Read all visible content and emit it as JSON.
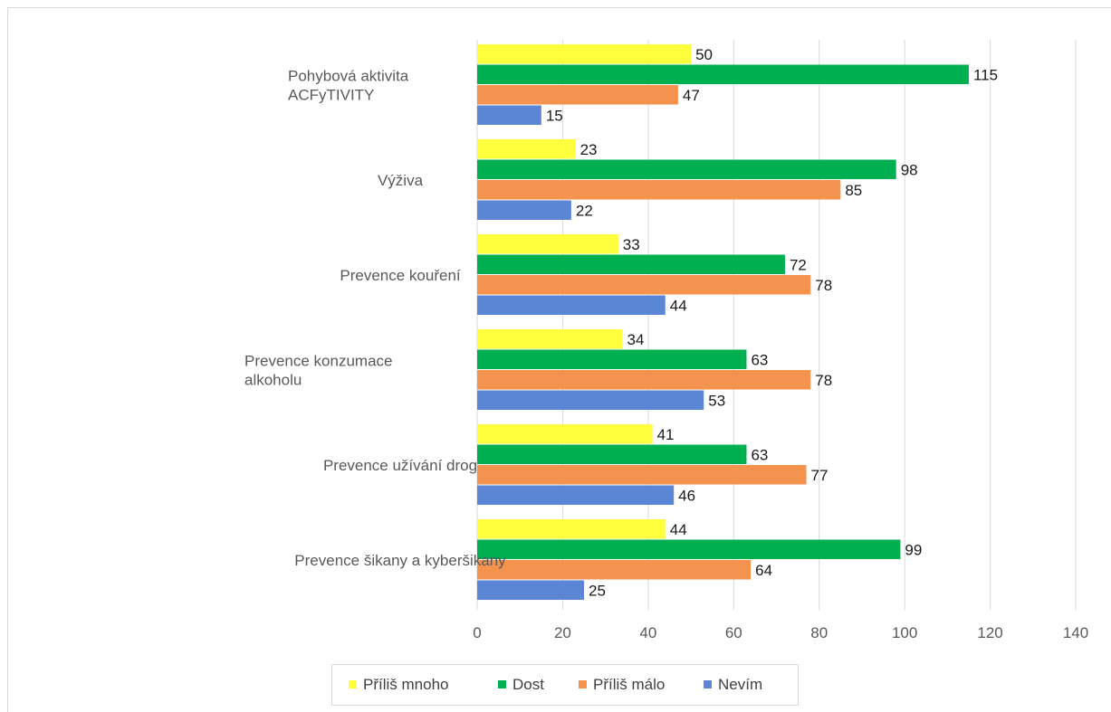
{
  "chart_data": {
    "type": "bar",
    "orientation": "horizontal",
    "categories": [
      [
        "Pohybová aktivita",
        "ACFyTIVITY"
      ],
      [
        "Výživa"
      ],
      [
        "Prevence kouření"
      ],
      [
        "Prevence konzumace",
        "alkoholu"
      ],
      [
        "Prevence užívání drog"
      ],
      [
        "Prevence šikany a kyberšikany"
      ]
    ],
    "series": [
      {
        "name": "Příliš mnoho",
        "color": "#ffff3b",
        "values": [
          50,
          23,
          33,
          34,
          41,
          44
        ]
      },
      {
        "name": "Dost",
        "color": "#00b050",
        "values": [
          115,
          98,
          72,
          63,
          63,
          99
        ]
      },
      {
        "name": "Příliš málo",
        "color": "#f4934d",
        "values": [
          47,
          85,
          78,
          78,
          77,
          64
        ]
      },
      {
        "name": "Nevím",
        "color": "#5b86d6",
        "values": [
          15,
          22,
          44,
          53,
          46,
          25
        ]
      }
    ],
    "xlim": [
      0,
      140
    ],
    "xticks": [
      "0",
      "20",
      "40",
      "60",
      "80",
      "100",
      "120",
      "140"
    ],
    "grid": true,
    "data_labels": true,
    "legend_position": "bottom"
  }
}
